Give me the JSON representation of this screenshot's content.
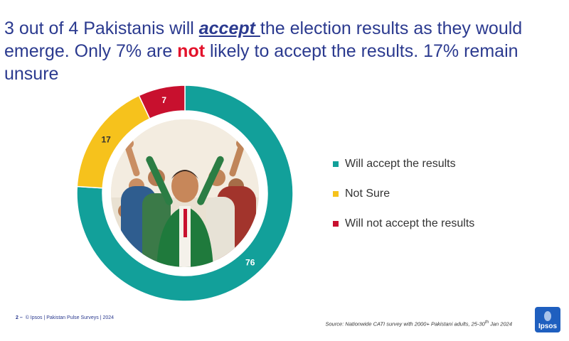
{
  "headline": {
    "part1": "3 out of 4 Pakistanis will ",
    "accept": "accept ",
    "part2": "the election results as they would emerge. Only 7% are ",
    "not": "not",
    "part3": " likely to accept the results. 17% remain unsure"
  },
  "chart_data": {
    "type": "pie",
    "donut": true,
    "categories": [
      "Will accept the results",
      "Not Sure",
      "Will not accept the results"
    ],
    "values": [
      76,
      17,
      7
    ],
    "labels": [
      "76",
      "17",
      "7"
    ],
    "colors": [
      "#12a09a",
      "#f6c21c",
      "#c8102e"
    ],
    "center_image": "crowd-illustration",
    "legend_position": "right"
  },
  "colors": {
    "headline": "#2b3a8f",
    "accept_emphasis": "#2b3a8f",
    "not_emphasis": "#e3122b",
    "ipsos_blue": "#1f5fbf"
  },
  "footer": {
    "page": "2 –",
    "copyright": "© Ipsos | Pakistan Pulse Surveys | 2024",
    "source_prefix": "Source: Nationwide CATI survey with 2000+ Pakistani adults, 25-30",
    "source_sup": "th",
    "source_suffix": " Jan 2024",
    "logo": "Ipsos"
  }
}
